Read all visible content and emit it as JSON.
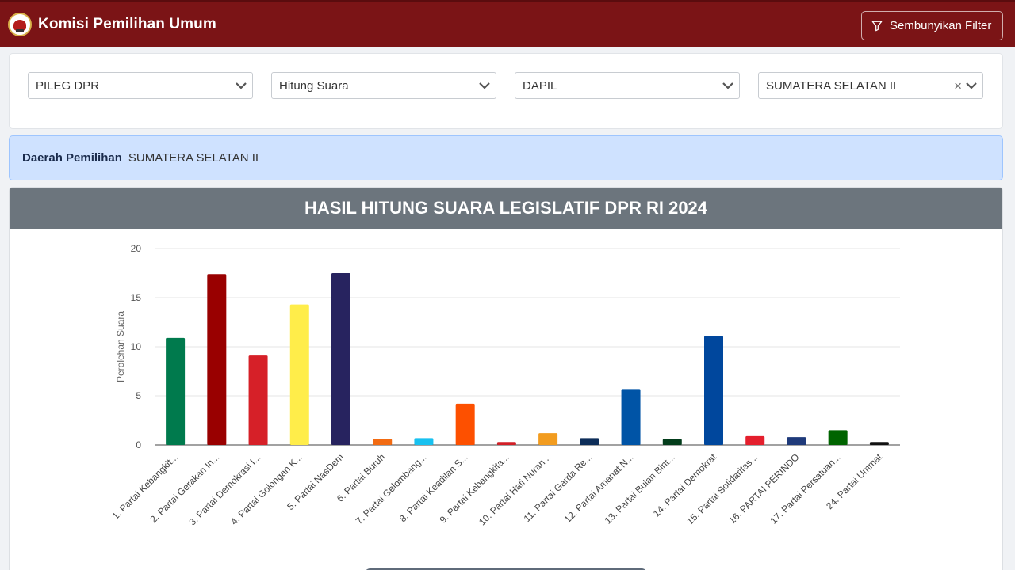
{
  "header": {
    "title": "Komisi Pemilihan Umum",
    "filter_toggle_label": "Sembunyikan Filter"
  },
  "filters": [
    {
      "value": "PILEG DPR"
    },
    {
      "value": "Hitung Suara"
    },
    {
      "value": "DAPIL"
    },
    {
      "value": "SUMATERA SELATAN II",
      "clear_symbol": "×"
    }
  ],
  "info": {
    "label": "Daerah Pemilihan",
    "value": "SUMATERA SELATAN II"
  },
  "chart_panel": {
    "title": "HASIL HITUNG SUARA LEGISLATIF DPR RI 2024"
  },
  "chart_data": {
    "type": "bar",
    "title": "HASIL HITUNG SUARA LEGISLATIF DPR RI 2024",
    "ylabel": "Perolehan Suara",
    "xlabel": "",
    "ylim": [
      0,
      20
    ],
    "yticks": [
      0,
      5,
      10,
      15,
      20
    ],
    "grid": true,
    "categories": [
      "1. Partai Kebangkit...",
      "2. Partai Gerakan In...",
      "3. Partai Demokrasi I...",
      "4. Partai Golongan K...",
      "5. Partai NasDem",
      "6. Partai Buruh",
      "7. Partai Gelombang...",
      "8. Partai Keadilan S...",
      "9. Partai Kebangkita...",
      "10. Partai Hati Nuran...",
      "11. Partai Garda Re...",
      "12. Partai Amanat N...",
      "13. Partai Bulan Bint...",
      "14. Partai Demokrat",
      "15. Partai Solidaritas...",
      "16. PARTAI PERINDO",
      "17. Partai Persatuan...",
      "24. Partai Ummat"
    ],
    "values": [
      10.9,
      17.4,
      9.1,
      14.3,
      17.5,
      0.6,
      0.7,
      4.2,
      0.3,
      1.2,
      0.7,
      5.7,
      0.6,
      11.1,
      0.9,
      0.8,
      1.5,
      0.3
    ],
    "colors": [
      "#007a4d",
      "#990000",
      "#d62028",
      "#ffed4a",
      "#27235f",
      "#f26b12",
      "#18c1f0",
      "#fd5000",
      "#d21f26",
      "#f29c1f",
      "#0d2d59",
      "#0054a6",
      "#033d1b",
      "#00479d",
      "#e41f2d",
      "#1f3a7a",
      "#006400",
      "#111111"
    ]
  }
}
